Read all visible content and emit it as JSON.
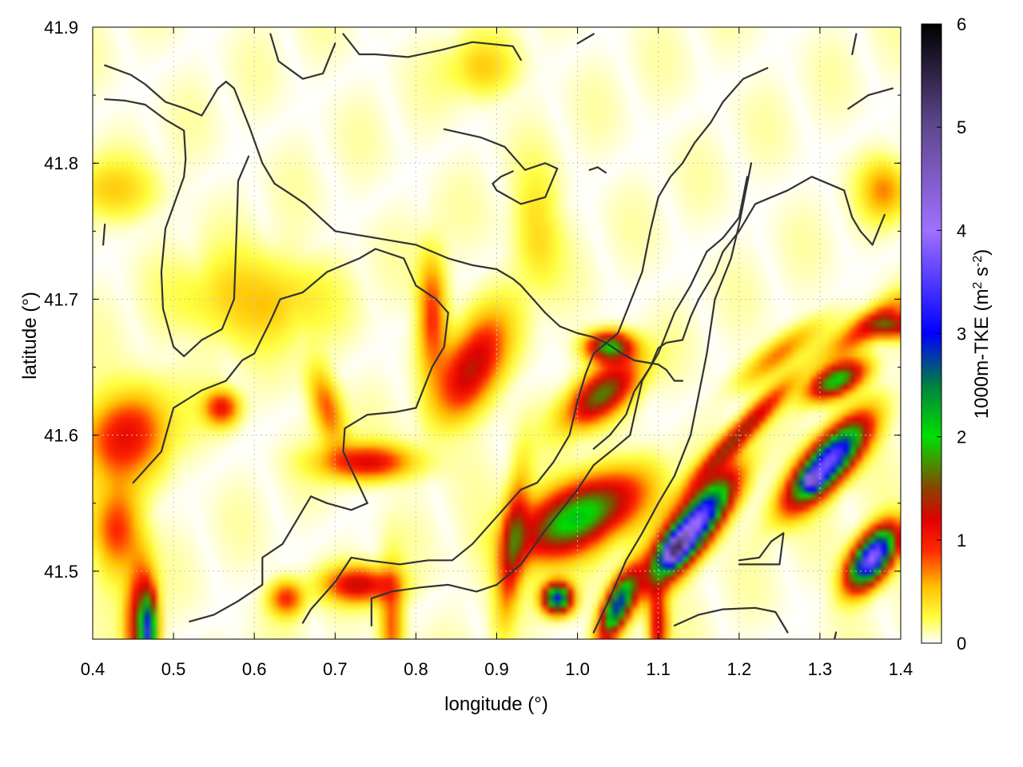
{
  "chart_data": {
    "type": "heatmap",
    "title": "",
    "xlabel": "longitude (°)",
    "ylabel": "latitude (°)",
    "colorbar_label": "1000m-TKE (m² s⁻²)",
    "colorbar_label_parts": {
      "base": "1000m-TKE (m",
      "sup1": "2",
      "mid": " s",
      "sup2": "-2",
      "end": ")"
    },
    "xlim": [
      0.4,
      1.4
    ],
    "ylim": [
      41.45,
      41.9
    ],
    "zlim": [
      0,
      6
    ],
    "xticks": [
      0.4,
      0.5,
      0.6,
      0.7,
      0.8,
      0.9,
      1.0,
      1.1,
      1.2,
      1.3,
      1.4
    ],
    "xtick_labels": [
      "0.4",
      "0.5",
      "0.6",
      "0.7",
      "0.8",
      "0.9",
      "1.0",
      "1.1",
      "1.2",
      "1.3",
      "1.4"
    ],
    "yticks": [
      41.5,
      41.6,
      41.7,
      41.8,
      41.9
    ],
    "ytick_labels": [
      "41.5",
      "41.6",
      "41.7",
      "41.8",
      "41.9"
    ],
    "colorbar_ticks": [
      0,
      1,
      2,
      3,
      4,
      5,
      6
    ],
    "colorbar_tick_labels": [
      "0",
      "1",
      "2",
      "3",
      "4",
      "5",
      "6"
    ],
    "grid": true,
    "colormap": [
      {
        "v": 0.0,
        "c": "#ffffff"
      },
      {
        "v": 0.25,
        "c": "#ffff40"
      },
      {
        "v": 0.55,
        "c": "#ffc000"
      },
      {
        "v": 0.9,
        "c": "#ff2800"
      },
      {
        "v": 1.2,
        "c": "#e00000"
      },
      {
        "v": 1.5,
        "c": "#884400"
      },
      {
        "v": 2.0,
        "c": "#00e000"
      },
      {
        "v": 2.5,
        "c": "#008040"
      },
      {
        "v": 3.0,
        "c": "#0000ff"
      },
      {
        "v": 4.0,
        "c": "#a070ff"
      },
      {
        "v": 5.0,
        "c": "#604890"
      },
      {
        "v": 6.0,
        "c": "#000000"
      }
    ],
    "tke_features": [
      {
        "x": 0.87,
        "y": 41.65,
        "sx": 0.04,
        "sy": 0.022,
        "rot": -35,
        "amp": 1.3
      },
      {
        "x": 0.82,
        "y": 41.69,
        "sx": 0.04,
        "sy": 0.012,
        "rot": 0,
        "amp": 0.9
      },
      {
        "x": 0.74,
        "y": 41.58,
        "sx": 0.012,
        "sy": 0.04,
        "rot": 0,
        "amp": 1.1
      },
      {
        "x": 0.73,
        "y": 41.49,
        "sx": 0.012,
        "sy": 0.03,
        "rot": 0,
        "amp": 1.2
      },
      {
        "x": 0.69,
        "y": 41.62,
        "sx": 0.03,
        "sy": 0.012,
        "rot": 20,
        "amp": 0.8
      },
      {
        "x": 0.56,
        "y": 41.62,
        "sx": 0.012,
        "sy": 0.015,
        "rot": 0,
        "amp": 1.0
      },
      {
        "x": 0.44,
        "y": 41.6,
        "sx": 0.03,
        "sy": 0.04,
        "rot": 20,
        "amp": 1.0
      },
      {
        "x": 0.43,
        "y": 41.53,
        "sx": 0.03,
        "sy": 0.02,
        "rot": 0,
        "amp": 0.9
      },
      {
        "x": 0.46,
        "y": 41.46,
        "sx": 0.04,
        "sy": 0.012,
        "rot": 0,
        "amp": 1.6
      },
      {
        "x": 0.47,
        "y": 41.454,
        "sx": 0.025,
        "sy": 0.006,
        "rot": 0,
        "amp": 2.2
      },
      {
        "x": 0.64,
        "y": 41.48,
        "sx": 0.012,
        "sy": 0.015,
        "rot": 0,
        "amp": 0.9
      },
      {
        "x": 0.77,
        "y": 41.46,
        "sx": 0.04,
        "sy": 0.01,
        "rot": 0,
        "amp": 0.8
      },
      {
        "x": 0.92,
        "y": 41.52,
        "sx": 0.05,
        "sy": 0.01,
        "rot": -8,
        "amp": 1.1
      },
      {
        "x": 1.0,
        "y": 41.54,
        "sx": 0.022,
        "sy": 0.055,
        "rot": 20,
        "amp": 2.1
      },
      {
        "x": 1.03,
        "y": 41.63,
        "sx": 0.015,
        "sy": 0.035,
        "rot": 30,
        "amp": 1.6
      },
      {
        "x": 1.04,
        "y": 41.665,
        "sx": 0.01,
        "sy": 0.02,
        "rot": 0,
        "amp": 1.9
      },
      {
        "x": 0.975,
        "y": 41.48,
        "sx": 0.01,
        "sy": 0.012,
        "rot": 0,
        "amp": 3.0
      },
      {
        "x": 1.05,
        "y": 41.475,
        "sx": 0.025,
        "sy": 0.01,
        "rot": -30,
        "amp": 2.8
      },
      {
        "x": 1.1,
        "y": 41.46,
        "sx": 0.025,
        "sy": 0.008,
        "rot": 0,
        "amp": 1.2
      },
      {
        "x": 1.14,
        "y": 41.53,
        "sx": 0.014,
        "sy": 0.045,
        "rot": 45,
        "amp": 4.2
      },
      {
        "x": 1.12,
        "y": 41.515,
        "sx": 0.008,
        "sy": 0.012,
        "rot": 45,
        "amp": 2.0
      },
      {
        "x": 1.2,
        "y": 41.6,
        "sx": 0.008,
        "sy": 0.055,
        "rot": 40,
        "amp": 1.4
      },
      {
        "x": 1.25,
        "y": 41.66,
        "sx": 0.01,
        "sy": 0.04,
        "rot": 30,
        "amp": 0.7
      },
      {
        "x": 1.31,
        "y": 41.58,
        "sx": 0.014,
        "sy": 0.04,
        "rot": 40,
        "amp": 3.8
      },
      {
        "x": 1.29,
        "y": 41.566,
        "sx": 0.006,
        "sy": 0.008,
        "rot": 0,
        "amp": 1.8
      },
      {
        "x": 1.32,
        "y": 41.64,
        "sx": 0.01,
        "sy": 0.025,
        "rot": 20,
        "amp": 2.0
      },
      {
        "x": 1.36,
        "y": 41.68,
        "sx": 0.01,
        "sy": 0.04,
        "rot": 30,
        "amp": 0.9
      },
      {
        "x": 1.365,
        "y": 41.51,
        "sx": 0.013,
        "sy": 0.025,
        "rot": 45,
        "amp": 4.0
      },
      {
        "x": 1.39,
        "y": 41.68,
        "sx": 0.008,
        "sy": 0.02,
        "rot": 0,
        "amp": 1.2
      },
      {
        "x": 1.38,
        "y": 41.78,
        "sx": 0.02,
        "sy": 0.02,
        "rot": 0,
        "amp": 0.6
      },
      {
        "x": 0.88,
        "y": 41.87,
        "sx": 0.02,
        "sy": 0.03,
        "rot": 0,
        "amp": 0.4
      },
      {
        "x": 0.6,
        "y": 41.7,
        "sx": 0.03,
        "sy": 0.06,
        "rot": 0,
        "amp": 0.5
      },
      {
        "x": 0.95,
        "y": 41.75,
        "sx": 0.04,
        "sy": 0.02,
        "rot": 0,
        "amp": 0.4
      },
      {
        "x": 0.42,
        "y": 41.78,
        "sx": 0.02,
        "sy": 0.04,
        "rot": 0,
        "amp": 0.4
      }
    ],
    "contours": [
      [
        [
          0.415,
          41.872
        ],
        [
          0.447,
          41.865
        ],
        [
          0.465,
          41.858
        ],
        [
          0.49,
          41.845
        ],
        [
          0.515,
          41.84
        ],
        [
          0.535,
          41.835
        ],
        [
          0.555,
          41.855
        ],
        [
          0.565,
          41.86
        ],
        [
          0.575,
          41.855
        ],
        [
          0.585,
          41.84
        ],
        [
          0.595,
          41.825
        ],
        [
          0.61,
          41.8
        ],
        [
          0.625,
          41.785
        ],
        [
          0.643,
          41.778
        ],
        [
          0.663,
          41.77
        ],
        [
          0.7,
          41.75
        ],
        [
          0.75,
          41.745
        ],
        [
          0.8,
          41.74
        ],
        [
          0.84,
          41.73
        ],
        [
          0.87,
          41.725
        ],
        [
          0.9,
          41.722
        ],
        [
          0.92,
          41.715
        ],
        [
          0.93,
          41.71
        ],
        [
          0.945,
          41.7
        ],
        [
          0.96,
          41.69
        ],
        [
          0.978,
          41.68
        ],
        [
          1.0,
          41.675
        ],
        [
          1.02,
          41.672
        ],
        [
          1.035,
          41.668
        ],
        [
          1.055,
          41.66
        ],
        [
          1.07,
          41.655
        ],
        [
          1.1,
          41.652
        ],
        [
          1.11,
          41.648
        ],
        [
          1.12,
          41.64
        ],
        [
          1.13,
          41.64
        ]
      ],
      [
        [
          0.415,
          41.847
        ],
        [
          0.44,
          41.846
        ],
        [
          0.465,
          41.843
        ],
        [
          0.49,
          41.832
        ],
        [
          0.513,
          41.824
        ],
        [
          0.515,
          41.803
        ],
        [
          0.513,
          41.79
        ],
        [
          0.49,
          41.752
        ],
        [
          0.485,
          41.72
        ],
        [
          0.487,
          41.693
        ],
        [
          0.5,
          41.665
        ],
        [
          0.513,
          41.658
        ],
        [
          0.535,
          41.67
        ],
        [
          0.56,
          41.678
        ],
        [
          0.575,
          41.7
        ],
        [
          0.578,
          41.75
        ],
        [
          0.58,
          41.787
        ],
        [
          0.593,
          41.805
        ]
      ],
      [
        [
          0.62,
          41.895
        ],
        [
          0.63,
          41.875
        ],
        [
          0.66,
          41.862
        ],
        [
          0.685,
          41.866
        ],
        [
          0.7,
          41.888
        ]
      ],
      [
        [
          0.71,
          41.895
        ],
        [
          0.73,
          41.88
        ],
        [
          0.75,
          41.88
        ],
        [
          0.79,
          41.878
        ],
        [
          0.83,
          41.883
        ],
        [
          0.87,
          41.889
        ],
        [
          0.92,
          41.886
        ],
        [
          0.93,
          41.876
        ]
      ],
      [
        [
          0.835,
          41.825
        ],
        [
          0.88,
          41.819
        ],
        [
          0.91,
          41.812
        ],
        [
          0.935,
          41.795
        ],
        [
          0.96,
          41.8
        ],
        [
          0.975,
          41.796
        ],
        [
          0.96,
          41.775
        ],
        [
          0.93,
          41.77
        ],
        [
          0.9,
          41.78
        ],
        [
          0.895,
          41.785
        ],
        [
          0.905,
          41.79
        ],
        [
          0.92,
          41.794
        ]
      ],
      [
        [
          1.0,
          41.888
        ],
        [
          1.02,
          41.895
        ]
      ],
      [
        [
          1.015,
          41.795
        ],
        [
          1.025,
          41.797
        ],
        [
          1.035,
          41.793
        ]
      ],
      [
        [
          1.335,
          41.84
        ],
        [
          1.36,
          41.85
        ],
        [
          1.39,
          41.855
        ]
      ],
      [
        [
          1.345,
          41.895
        ],
        [
          1.34,
          41.88
        ]
      ],
      [
        [
          0.45,
          41.565
        ],
        [
          0.485,
          41.588
        ],
        [
          0.5,
          41.62
        ],
        [
          0.535,
          41.633
        ],
        [
          0.565,
          41.64
        ],
        [
          0.585,
          41.655
        ],
        [
          0.6,
          41.66
        ],
        [
          0.62,
          41.684
        ],
        [
          0.632,
          41.7
        ],
        [
          0.66,
          41.705
        ],
        [
          0.69,
          41.72
        ],
        [
          0.73,
          41.73
        ],
        [
          0.75,
          41.737
        ],
        [
          0.785,
          41.73
        ],
        [
          0.8,
          41.71
        ],
        [
          0.825,
          41.7
        ],
        [
          0.84,
          41.69
        ],
        [
          0.835,
          41.665
        ],
        [
          0.82,
          41.65
        ],
        [
          0.8,
          41.62
        ],
        [
          0.775,
          41.617
        ],
        [
          0.74,
          41.615
        ],
        [
          0.712,
          41.605
        ],
        [
          0.71,
          41.588
        ],
        [
          0.72,
          41.575
        ],
        [
          0.74,
          41.55
        ],
        [
          0.72,
          41.545
        ],
        [
          0.69,
          41.55
        ],
        [
          0.67,
          41.555
        ],
        [
          0.65,
          41.535
        ],
        [
          0.635,
          41.52
        ],
        [
          0.61,
          41.51
        ],
        [
          0.61,
          41.49
        ],
        [
          0.58,
          41.478
        ],
        [
          0.55,
          41.468
        ],
        [
          0.52,
          41.463
        ]
      ],
      [
        [
          0.66,
          41.462
        ],
        [
          0.67,
          41.472
        ],
        [
          0.7,
          41.492
        ],
        [
          0.72,
          41.51
        ],
        [
          0.74,
          41.508
        ],
        [
          0.78,
          41.505
        ],
        [
          0.815,
          41.508
        ],
        [
          0.845,
          41.508
        ],
        [
          0.87,
          41.52
        ],
        [
          0.9,
          41.54
        ],
        [
          0.93,
          41.56
        ],
        [
          0.95,
          41.565
        ],
        [
          0.97,
          41.58
        ],
        [
          0.99,
          41.6
        ],
        [
          1.0,
          41.625
        ],
        [
          1.01,
          41.645
        ],
        [
          1.02,
          41.66
        ],
        [
          1.05,
          41.675
        ],
        [
          1.06,
          41.69
        ],
        [
          1.08,
          41.72
        ],
        [
          1.09,
          41.75
        ],
        [
          1.1,
          41.775
        ],
        [
          1.115,
          41.79
        ],
        [
          1.13,
          41.8
        ],
        [
          1.145,
          41.815
        ],
        [
          1.165,
          41.83
        ],
        [
          1.18,
          41.845
        ],
        [
          1.205,
          41.862
        ],
        [
          1.235,
          41.87
        ]
      ],
      [
        [
          0.745,
          41.46
        ],
        [
          0.745,
          41.48
        ],
        [
          0.77,
          41.485
        ],
        [
          0.805,
          41.488
        ],
        [
          0.84,
          41.49
        ],
        [
          0.875,
          41.485
        ],
        [
          0.9,
          41.49
        ],
        [
          0.93,
          41.505
        ],
        [
          0.96,
          41.53
        ],
        [
          0.98,
          41.545
        ],
        [
          1.0,
          41.56
        ],
        [
          1.02,
          41.578
        ],
        [
          1.045,
          41.59
        ],
        [
          1.065,
          41.6
        ],
        [
          1.08,
          41.64
        ],
        [
          1.1,
          41.66
        ],
        [
          1.12,
          41.69
        ],
        [
          1.14,
          41.71
        ],
        [
          1.16,
          41.735
        ],
        [
          1.18,
          41.745
        ],
        [
          1.2,
          41.76
        ],
        [
          1.21,
          41.79
        ]
      ],
      [
        [
          1.02,
          41.455
        ],
        [
          1.04,
          41.48
        ],
        [
          1.06,
          41.508
        ],
        [
          1.08,
          41.528
        ],
        [
          1.1,
          41.55
        ],
        [
          1.12,
          41.57
        ],
        [
          1.14,
          41.6
        ],
        [
          1.15,
          41.63
        ],
        [
          1.16,
          41.66
        ],
        [
          1.17,
          41.7
        ],
        [
          1.19,
          41.73
        ],
        [
          1.2,
          41.755
        ],
        [
          1.205,
          41.77
        ],
        [
          1.215,
          41.8
        ]
      ],
      [
        [
          1.2,
          41.505
        ],
        [
          1.25,
          41.505
        ],
        [
          1.255,
          41.528
        ],
        [
          1.24,
          41.522
        ],
        [
          1.225,
          41.51
        ],
        [
          1.2,
          41.508
        ]
      ],
      [
        [
          1.26,
          41.455
        ],
        [
          1.245,
          41.47
        ],
        [
          1.22,
          41.473
        ],
        [
          1.18,
          41.472
        ],
        [
          1.15,
          41.468
        ],
        [
          1.12,
          41.46
        ]
      ],
      [
        [
          1.02,
          41.59
        ],
        [
          1.04,
          41.6
        ],
        [
          1.06,
          41.615
        ],
        [
          1.07,
          41.632
        ],
        [
          1.09,
          41.65
        ],
        [
          1.1,
          41.664
        ],
        [
          1.11,
          41.668
        ],
        [
          1.13,
          41.67
        ],
        [
          1.14,
          41.687
        ],
        [
          1.15,
          41.7
        ],
        [
          1.17,
          41.72
        ],
        [
          1.18,
          41.735
        ],
        [
          1.2,
          41.75
        ],
        [
          1.22,
          41.77
        ],
        [
          1.24,
          41.775
        ],
        [
          1.26,
          41.78
        ],
        [
          1.29,
          41.79
        ],
        [
          1.33,
          41.78
        ],
        [
          1.34,
          41.76
        ],
        [
          1.35,
          41.75
        ],
        [
          1.365,
          41.74
        ],
        [
          1.38,
          41.762
        ]
      ],
      [
        [
          0.415,
          41.755
        ],
        [
          0.413,
          41.74
        ]
      ],
      [
        [
          1.32,
          41.455
        ],
        [
          1.318,
          41.45
        ]
      ]
    ]
  }
}
